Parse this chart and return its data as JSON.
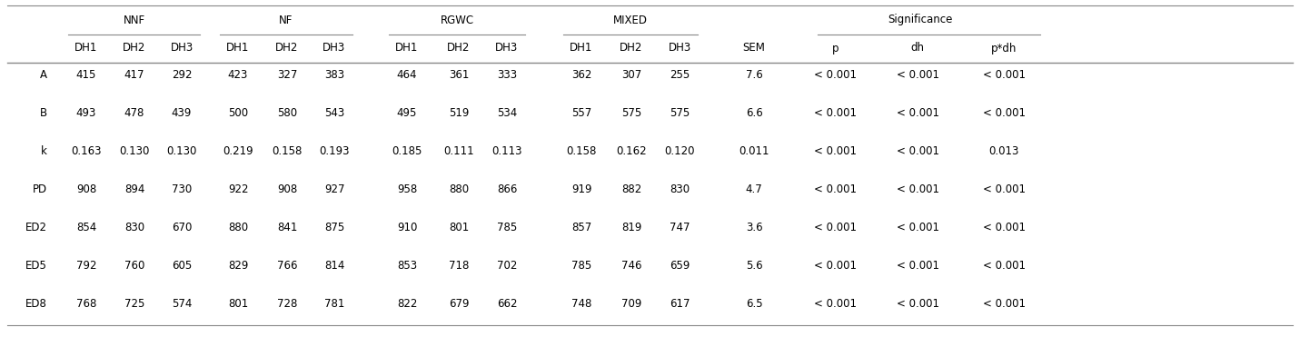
{
  "col_groups": [
    {
      "label": "NNF",
      "span": [
        1,
        3
      ]
    },
    {
      "label": "NF",
      "span": [
        4,
        6
      ]
    },
    {
      "label": "RGWC",
      "span": [
        7,
        9
      ]
    },
    {
      "label": "MIXED",
      "span": [
        10,
        12
      ]
    }
  ],
  "significance_label": "Significance",
  "sig_span": [
    14,
    16
  ],
  "dh_headers": [
    "DH1",
    "DH2",
    "DH3",
    "DH1",
    "DH2",
    "DH3",
    "DH1",
    "DH2",
    "DH3",
    "DH1",
    "DH2",
    "DH3"
  ],
  "extra_headers": [
    "SEM",
    "p",
    "dh",
    "p*dh"
  ],
  "row_labels": [
    "A",
    "B",
    "k",
    "PD",
    "ED2",
    "ED5",
    "ED8"
  ],
  "rows": [
    [
      "415",
      "417",
      "292",
      "423",
      "327",
      "383",
      "464",
      "361",
      "333",
      "362",
      "307",
      "255",
      "7.6",
      "< 0.001",
      "< 0.001",
      "< 0.001"
    ],
    [
      "493",
      "478",
      "439",
      "500",
      "580",
      "543",
      "495",
      "519",
      "534",
      "557",
      "575",
      "575",
      "6.6",
      "< 0.001",
      "< 0.001",
      "< 0.001"
    ],
    [
      "0.163",
      "0.130",
      "0.130",
      "0.219",
      "0.158",
      "0.193",
      "0.185",
      "0.111",
      "0.113",
      "0.158",
      "0.162",
      "0.120",
      "0.011",
      "< 0.001",
      "< 0.001",
      "0.013"
    ],
    [
      "908",
      "894",
      "730",
      "922",
      "908",
      "927",
      "958",
      "880",
      "866",
      "919",
      "882",
      "830",
      "4.7",
      "< 0.001",
      "< 0.001",
      "< 0.001"
    ],
    [
      "854",
      "830",
      "670",
      "880",
      "841",
      "875",
      "910",
      "801",
      "785",
      "857",
      "819",
      "747",
      "3.6",
      "< 0.001",
      "< 0.001",
      "< 0.001"
    ],
    [
      "792",
      "760",
      "605",
      "829",
      "766",
      "814",
      "853",
      "718",
      "702",
      "785",
      "746",
      "659",
      "5.6",
      "< 0.001",
      "< 0.001",
      "< 0.001"
    ],
    [
      "768",
      "725",
      "574",
      "801",
      "728",
      "781",
      "822",
      "679",
      "662",
      "748",
      "709",
      "617",
      "6.5",
      "< 0.001",
      "< 0.001",
      "< 0.001"
    ]
  ],
  "font_size": 8.5,
  "bg_color": "white",
  "line_color": "#888888",
  "fig_width": 14.31,
  "fig_height": 3.71,
  "dpi": 100
}
